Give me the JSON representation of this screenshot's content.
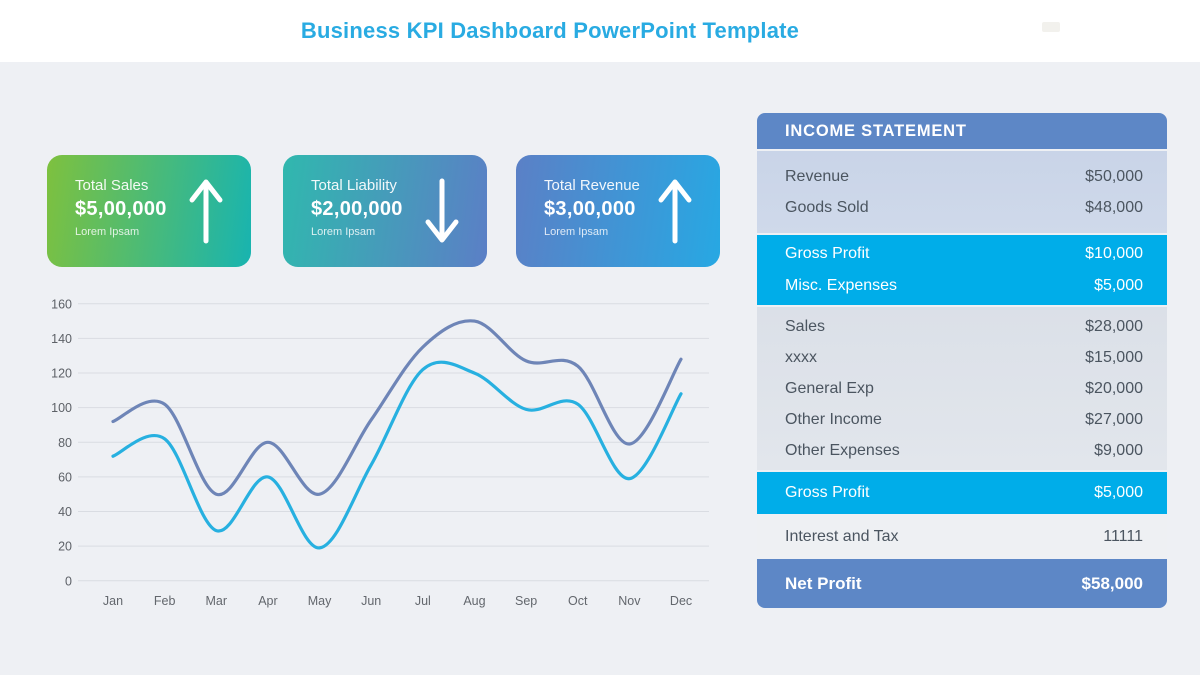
{
  "header": {
    "title": "Business KPI Dashboard PowerPoint Template",
    "accent_color": "#29abe2"
  },
  "kpi_cards": [
    {
      "label": "Total Sales",
      "value": "$5,00,000",
      "sub": "Lorem Ipsam",
      "direction": "up",
      "gradient": [
        "#7ec13e",
        "#18b4b0"
      ]
    },
    {
      "label": "Total Liability",
      "value": "$2,00,000",
      "sub": "Lorem Ipsam",
      "direction": "down",
      "gradient": [
        "#30b8ae",
        "#5b7fc6"
      ]
    },
    {
      "label": "Total Revenue",
      "value": "$3,00,000",
      "sub": "Lorem Ipsam",
      "direction": "up",
      "gradient": [
        "#5b80c6",
        "#27a8e3"
      ]
    }
  ],
  "chart_data": {
    "type": "line",
    "x": [
      "Jan",
      "Feb",
      "Mar",
      "Apr",
      "May",
      "Jun",
      "Jul",
      "Aug",
      "Sep",
      "Oct",
      "Nov",
      "Dec"
    ],
    "series": [
      {
        "name": "upper-line",
        "color": "#6e85b7",
        "values": [
          92,
          102,
          50,
          80,
          50,
          93,
          135,
          150,
          127,
          124,
          79,
          128
        ]
      },
      {
        "name": "lower-line",
        "color": "#27b0e0",
        "values": [
          72,
          82,
          29,
          60,
          19,
          67,
          122,
          120,
          99,
          102,
          59,
          108
        ]
      }
    ],
    "ylim": [
      0,
      160
    ],
    "yticks": [
      0,
      20,
      40,
      60,
      80,
      100,
      120,
      140,
      160
    ],
    "grid": true,
    "legend": "none",
    "grid_color": "#d9dce2",
    "tick_color": "#5d6167"
  },
  "income_statement": {
    "title": "INCOME STATEMENT",
    "sections": [
      {
        "style": "periwinkle",
        "rows": [
          {
            "label": "Revenue",
            "value": "$50,000"
          },
          {
            "label": "Goods Sold",
            "value": "$48,000"
          }
        ]
      },
      {
        "style": "cyan",
        "rows": [
          {
            "label": "Gross Profit",
            "value": "$10,000"
          },
          {
            "label": "Misc. Expenses",
            "value": "$5,000"
          }
        ]
      },
      {
        "style": "gray",
        "rows": [
          {
            "label": "Sales",
            "value": "$28,000"
          },
          {
            "label": "xxxx",
            "value": "$15,000"
          },
          {
            "label": "General Exp",
            "value": "$20,000"
          },
          {
            "label": "Other Income",
            "value": "$27,000"
          },
          {
            "label": "Other Expenses",
            "value": "$9,000"
          }
        ]
      },
      {
        "style": "cyan-single",
        "rows": [
          {
            "label": "Gross Profit",
            "value": "$5,000"
          }
        ]
      },
      {
        "style": "light",
        "rows": [
          {
            "label": "Interest and Tax",
            "value": "11111"
          }
        ]
      },
      {
        "style": "blue-footer",
        "rows": [
          {
            "label": "Net Profit",
            "value": "$58,000"
          }
        ]
      }
    ]
  }
}
